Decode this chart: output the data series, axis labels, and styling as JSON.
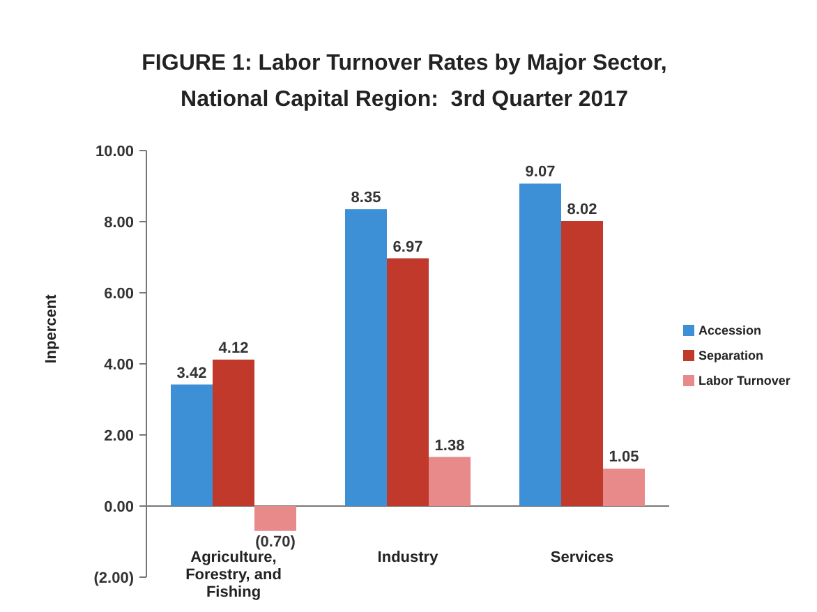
{
  "chart_data": {
    "type": "bar",
    "title": "FIGURE 1: Labor Turnover Rates by Major Sector,",
    "subtitle": "National Capital Region:  3rd Quarter 2017",
    "ylabel": "Inpercent",
    "categories": [
      "Agriculture, Forestry, and Fishing",
      "Industry",
      "Services"
    ],
    "series": [
      {
        "name": "Accession",
        "color": "#3d8fd6",
        "values": [
          3.42,
          8.35,
          9.07
        ],
        "value_labels": [
          "3.42",
          "8.35",
          "9.07"
        ]
      },
      {
        "name": "Separation",
        "color": "#c0392b",
        "values": [
          4.12,
          6.97,
          8.02
        ],
        "value_labels": [
          "4.12",
          "6.97",
          "8.02"
        ]
      },
      {
        "name": "Labor Turnover",
        "color": "#e88a8a",
        "values": [
          -0.7,
          1.38,
          1.05
        ],
        "value_labels": [
          "(0.70)",
          "1.38",
          "1.05"
        ]
      }
    ],
    "ylim": [
      -2,
      10
    ],
    "yticks": [
      {
        "value": -2,
        "label": "(2.00)"
      },
      {
        "value": 0,
        "label": "0.00"
      },
      {
        "value": 2,
        "label": "2.00"
      },
      {
        "value": 4,
        "label": "4.00"
      },
      {
        "value": 6,
        "label": "6.00"
      },
      {
        "value": 8,
        "label": "8.00"
      },
      {
        "value": 10,
        "label": "10.00"
      }
    ],
    "legend": "right"
  }
}
